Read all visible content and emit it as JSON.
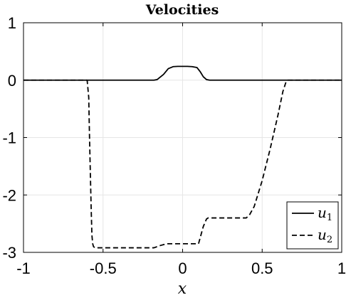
{
  "chart_data": {
    "type": "line",
    "title": "Velocities",
    "xlabel": "x",
    "ylabel": "",
    "xlim": [
      -1,
      1
    ],
    "ylim": [
      -3,
      1
    ],
    "xticks": [
      -1,
      -0.5,
      0,
      0.5,
      1
    ],
    "xtick_labels": [
      "-1",
      "-0.5",
      "0",
      "0.5",
      "1"
    ],
    "yticks": [
      1,
      0,
      -1,
      -2,
      -3
    ],
    "ytick_labels": [
      "1",
      "0",
      "-1",
      "-2",
      "-3"
    ],
    "grid": true,
    "legend_position": "bottom-right",
    "series": [
      {
        "name": "u",
        "subscript": "1",
        "style": "solid",
        "color": "#000000",
        "x": [
          -1,
          -0.18,
          -0.16,
          -0.12,
          -0.09,
          -0.06,
          -0.03,
          0.0,
          0.03,
          0.06,
          0.09,
          0.11,
          0.13,
          0.15,
          0.17,
          1
        ],
        "y": [
          0,
          0,
          0.01,
          0.1,
          0.2,
          0.235,
          0.24,
          0.24,
          0.24,
          0.235,
          0.22,
          0.15,
          0.06,
          0.01,
          0,
          0
        ]
      },
      {
        "name": "u",
        "subscript": "2",
        "style": "dashed",
        "color": "#000000",
        "x": [
          -1,
          -0.6,
          -0.59,
          -0.585,
          -0.575,
          -0.57,
          -0.565,
          -0.56,
          -0.55,
          -0.5,
          -0.3,
          -0.18,
          -0.14,
          -0.1,
          -0.05,
          0.0,
          0.1,
          0.11,
          0.13,
          0.15,
          0.16,
          0.2,
          0.3,
          0.4,
          0.42,
          0.45,
          0.5,
          0.55,
          0.6,
          0.63,
          0.65,
          0.66,
          1
        ],
        "y": [
          0,
          0,
          -0.3,
          -1.0,
          -2.2,
          -2.7,
          -2.85,
          -2.9,
          -2.92,
          -2.92,
          -2.92,
          -2.92,
          -2.88,
          -2.85,
          -2.85,
          -2.85,
          -2.85,
          -2.75,
          -2.55,
          -2.42,
          -2.4,
          -2.4,
          -2.4,
          -2.4,
          -2.35,
          -2.2,
          -1.75,
          -1.2,
          -0.6,
          -0.2,
          -0.03,
          0,
          0
        ]
      }
    ]
  }
}
